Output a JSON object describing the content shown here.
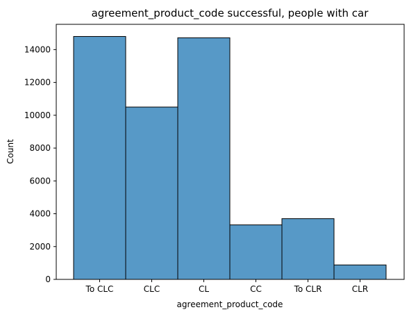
{
  "chart_data": {
    "type": "bar",
    "title": "agreement_product_code successful, people with car",
    "xlabel": "agreement_product_code",
    "ylabel": "Count",
    "categories": [
      "To CLC",
      "CLC",
      "CL",
      "CC",
      "To CLR",
      "CLR"
    ],
    "values": [
      14800,
      10500,
      14720,
      3320,
      3700,
      880
    ],
    "ylim": [
      0,
      15540
    ],
    "yticks": [
      0,
      2000,
      4000,
      6000,
      8000,
      10000,
      12000,
      14000
    ],
    "grid": false,
    "legend": "none",
    "colors": {
      "bar_fill": "#5799c7",
      "bar_edge": "#000000",
      "axis": "#000000",
      "background": "#ffffff"
    }
  }
}
